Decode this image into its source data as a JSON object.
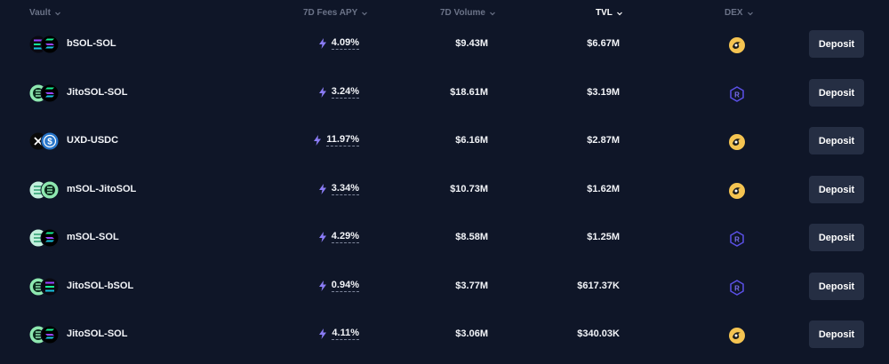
{
  "header": {
    "vault": "Vault",
    "apy": "7D Fees APY",
    "volume": "7D Volume",
    "tvl": "TVL",
    "dex": "DEX"
  },
  "colors": {
    "background": "#0f1628",
    "button": "#252e43",
    "accent_bolt": "#8b7cf6",
    "orca_yellow": "#f5c451",
    "raydium_purple": "#5b50e8",
    "header_text": "#6b7388"
  },
  "rows": [
    {
      "pair": "bSOL-SOL",
      "apy": "4.09%",
      "volume": "$9.43M",
      "tvl": "$6.67M",
      "dex": "orca-icon",
      "action": "Deposit",
      "token_a": "bsol-icon",
      "token_b": "sol-icon"
    },
    {
      "pair": "JitoSOL-SOL",
      "apy": "3.24%",
      "volume": "$18.61M",
      "tvl": "$3.19M",
      "dex": "raydium-icon",
      "action": "Deposit",
      "token_a": "jitosol-icon",
      "token_b": "sol-icon"
    },
    {
      "pair": "UXD-USDC",
      "apy": "11.97%",
      "volume": "$6.16M",
      "tvl": "$2.87M",
      "dex": "orca-icon",
      "action": "Deposit",
      "token_a": "uxd-icon",
      "token_b": "usdc-icon"
    },
    {
      "pair": "mSOL-JitoSOL",
      "apy": "3.34%",
      "volume": "$10.73M",
      "tvl": "$1.62M",
      "dex": "orca-icon",
      "action": "Deposit",
      "token_a": "msol-icon",
      "token_b": "jitosol-icon"
    },
    {
      "pair": "mSOL-SOL",
      "apy": "4.29%",
      "volume": "$8.58M",
      "tvl": "$1.25M",
      "dex": "raydium-icon",
      "action": "Deposit",
      "token_a": "msol-icon",
      "token_b": "sol-icon"
    },
    {
      "pair": "JitoSOL-bSOL",
      "apy": "0.94%",
      "volume": "$3.77M",
      "tvl": "$617.37K",
      "dex": "raydium-icon",
      "action": "Deposit",
      "token_a": "jitosol-icon",
      "token_b": "bsol-icon"
    },
    {
      "pair": "JitoSOL-SOL",
      "apy": "4.11%",
      "volume": "$3.06M",
      "tvl": "$340.03K",
      "dex": "orca-icon",
      "action": "Deposit",
      "token_a": "jitosol-icon",
      "token_b": "sol-icon"
    }
  ]
}
